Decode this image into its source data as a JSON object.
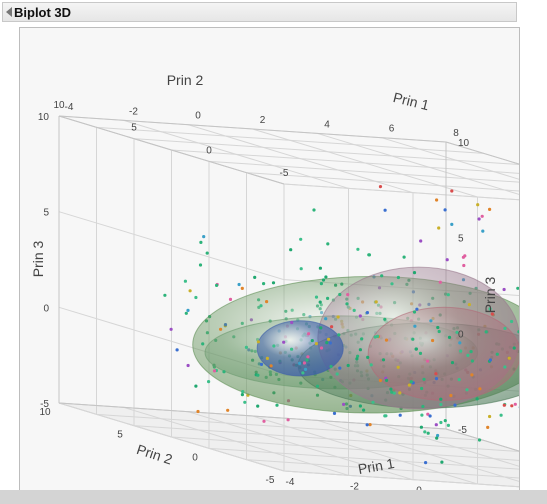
{
  "outline": {
    "title": "Biplot 3D"
  },
  "chart_data": {
    "type": "scatter",
    "title": "",
    "axes": {
      "x": {
        "label": "Prin 1",
        "range": [
          -4,
          8
        ],
        "ticks": [
          "-4",
          "-2",
          "0",
          "2",
          "4",
          "6",
          "8"
        ]
      },
      "y": {
        "label": "Prin 2",
        "range": [
          -5,
          10
        ],
        "ticks": [
          "10",
          "5",
          "0",
          "-5"
        ]
      },
      "z": {
        "label": "Prin 3",
        "range": [
          -5,
          10
        ],
        "ticks": [
          "10",
          "5",
          "0",
          "-5"
        ]
      }
    },
    "grid": true,
    "ellipsoids": [
      {
        "center": [
          1.5,
          1.0,
          0.8
        ],
        "radii": [
          4.2,
          4.8,
          3.0
        ],
        "color": "#5f8f55",
        "opacity": 0.4
      },
      {
        "center": [
          0.8,
          1.5,
          0.2
        ],
        "radii": [
          3.5,
          2.6,
          1.6
        ],
        "color": "#6a9a6e",
        "opacity": 0.35
      },
      {
        "center": [
          3.0,
          0.5,
          0.0
        ],
        "radii": [
          3.0,
          3.6,
          1.8
        ],
        "color": "#4e7c5a",
        "opacity": 0.35
      },
      {
        "center": [
          2.5,
          0.0,
          1.5
        ],
        "radii": [
          2.4,
          2.6,
          3.4
        ],
        "color": "#9a7a8e",
        "opacity": 0.4
      },
      {
        "center": [
          3.2,
          -0.2,
          0.8
        ],
        "radii": [
          1.8,
          2.0,
          2.2
        ],
        "color": "#b06a78",
        "opacity": 0.3
      },
      {
        "center": [
          -0.8,
          0.8,
          0.4
        ],
        "radii": [
          1.0,
          1.2,
          1.3
        ],
        "color": "#3e5fa8",
        "opacity": 0.55
      }
    ],
    "point_colors": [
      "#2db37a",
      "#20a870",
      "#3cbf8a",
      "#e0842a",
      "#d94c4c",
      "#9b4fc4",
      "#3a6fd0",
      "#c9b02a",
      "#e05fa0",
      "#3aa0c8"
    ]
  }
}
